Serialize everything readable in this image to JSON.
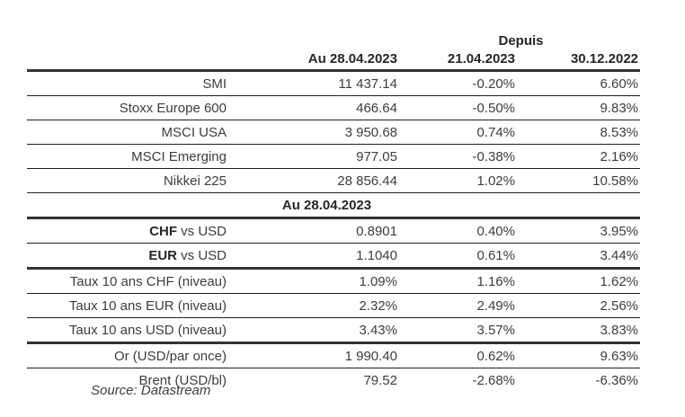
{
  "colors": {
    "rule_thick": "#35332d",
    "rule_thin": "#1f1f1f",
    "text": "#3d3d3d",
    "text_bold": "#262626",
    "background": "#ffffff"
  },
  "table": {
    "depuis_label": "Depuis",
    "columns": [
      "Au 28.04.2023",
      "21.04.2023",
      "30.12.2022"
    ],
    "section_header": "Au 28.04.2023",
    "source": "Source: Datastream",
    "rows": [
      {
        "label_bold": "",
        "label": "SMI",
        "v1": "11 437.14",
        "v2": "-0.20%",
        "v3": "6.60%"
      },
      {
        "label_bold": "",
        "label": "Stoxx Europe 600",
        "v1": "466.64",
        "v2": "-0.50%",
        "v3": "9.83%"
      },
      {
        "label_bold": "",
        "label": "MSCI USA",
        "v1": "3 950.68",
        "v2": "0.74%",
        "v3": "8.53%"
      },
      {
        "label_bold": "",
        "label": "MSCI Emerging",
        "v1": "977.05",
        "v2": "-0.38%",
        "v3": "2.16%"
      },
      {
        "label_bold": "",
        "label": "Nikkei 225",
        "v1": "28 856.44",
        "v2": "1.02%",
        "v3": "10.58%"
      },
      {
        "label_bold": "CHF",
        "label": " vs USD",
        "v1": "0.8901",
        "v2": "0.40%",
        "v3": "3.95%"
      },
      {
        "label_bold": "EUR",
        "label": " vs USD",
        "v1": "1.1040",
        "v2": "0.61%",
        "v3": "3.44%"
      },
      {
        "label_bold": "",
        "label": "Taux 10 ans CHF (niveau)",
        "v1": "1.09%",
        "v2": "1.16%",
        "v3": "1.62%"
      },
      {
        "label_bold": "",
        "label": "Taux 10 ans EUR (niveau)",
        "v1": "2.32%",
        "v2": "2.49%",
        "v3": "2.56%"
      },
      {
        "label_bold": "",
        "label": "Taux 10 ans USD (niveau)",
        "v1": "3.43%",
        "v2": "3.57%",
        "v3": "3.83%"
      },
      {
        "label_bold": "",
        "label": "Or (USD/par once)",
        "v1": "1 990.40",
        "v2": "0.62%",
        "v3": "9.63%"
      },
      {
        "label_bold": "",
        "label": "Brent (USD/bl)",
        "v1": "79.52",
        "v2": "-2.68%",
        "v3": "-6.36%"
      }
    ]
  }
}
